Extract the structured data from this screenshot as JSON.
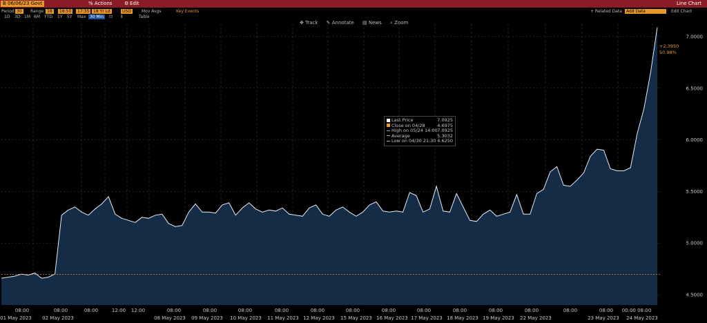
{
  "header": {
    "ticker": "B 06/06/23 Govt",
    "actions_label": "% Actions",
    "edit_label": "Edit",
    "chart_label": "Line Chart"
  },
  "settings": {
    "period_label": "Period",
    "period_value": "30",
    "range_label": "Range",
    "range_from": "18",
    "range_from_time": "18:50",
    "range_to": "17:35",
    "range_to_time": "18 Yr Ld",
    "currency": "USD",
    "mov_avgs_label": "Mov Avgs",
    "key_events_label": "Key Events",
    "related_data_label": "+ Related Data",
    "add_data_label": "Add Data",
    "edit_chart_label": "Edit Chart"
  },
  "range_buttons": [
    "1D",
    "3D",
    "1M",
    "6M",
    "YTD",
    "1Y",
    "5Y",
    "Max"
  ],
  "interval_value": "30 Min",
  "table_label": "Table",
  "toolbar": {
    "track": "Track",
    "annotate": "Annotate",
    "news": "News",
    "zoom": "Zoom"
  },
  "tooltip": {
    "rows": [
      {
        "label": "Last Price",
        "value": "7.0925"
      },
      {
        "label": "Close on 04/28",
        "value": "4.6975"
      },
      {
        "label": "High on 05/24 14:00",
        "value": "7.0925"
      },
      {
        "label": "Average",
        "value": "5.3032"
      },
      {
        "label": "Low on 04/30 21:30",
        "value": "4.6250"
      }
    ]
  },
  "end_labels": {
    "change": "+2.3950",
    "pct": "50.98%"
  },
  "colors": {
    "line": "#e6eef8",
    "fill": "#142c45",
    "close_line": "#e9962b",
    "title_bar": "#8b1b24",
    "accent": "#e9962b"
  },
  "chart_data": {
    "type": "area",
    "title": "",
    "xlabel": "",
    "ylabel": "",
    "ylim": [
      4.4,
      7.1
    ],
    "yticks": [
      "4.5000",
      "5.0000",
      "5.5000",
      "6.0000",
      "6.5000",
      "7.0000"
    ],
    "ytick_values": [
      4.5,
      5.0,
      5.5,
      6.0,
      6.5,
      7.0
    ],
    "close_line_value": 4.6975,
    "x_time_labels": [
      "08:00",
      "08:00",
      "08:00",
      "12:00",
      "12:00",
      "08:00",
      "08:00",
      "08:00",
      "08:00",
      "08:00",
      "08:00",
      "08:00",
      "08:00",
      "08:00",
      "08:00",
      "08:00",
      "08:00",
      "08:00",
      "00:00 08:00"
    ],
    "x_date_labels": [
      "01 May 2023",
      "02 May 2023",
      "08 May 2023",
      "09 May 2023",
      "10 May 2023",
      "11 May 2023",
      "12 May 2023",
      "15 May 2023",
      "16 May 2023",
      "17 May 2023",
      "18 May 2023",
      "19 May 2023",
      "22 May 2023",
      "23 May 2023",
      "24 May 2023"
    ],
    "series": [
      {
        "values": [
          4.66,
          4.67,
          4.68,
          4.7,
          4.69,
          4.71,
          4.66,
          4.67,
          4.7,
          5.27,
          5.32,
          5.35,
          5.3,
          5.27,
          5.33,
          5.38,
          5.45,
          5.28,
          5.24,
          5.22,
          5.2,
          5.25,
          5.24,
          5.27,
          5.28,
          5.19,
          5.16,
          5.17,
          5.3,
          5.38,
          5.3,
          5.3,
          5.29,
          5.37,
          5.39,
          5.27,
          5.34,
          5.39,
          5.33,
          5.3,
          5.32,
          5.31,
          5.34,
          5.28,
          5.27,
          5.26,
          5.34,
          5.37,
          5.28,
          5.26,
          5.32,
          5.35,
          5.3,
          5.26,
          5.3,
          5.37,
          5.4,
          5.31,
          5.3,
          5.31,
          5.3,
          5.49,
          5.46,
          5.3,
          5.33,
          5.55,
          5.31,
          5.3,
          5.48,
          5.35,
          5.22,
          5.21,
          5.28,
          5.32,
          5.26,
          5.28,
          5.3,
          5.47,
          5.28,
          5.28,
          5.48,
          5.52,
          5.69,
          5.74,
          5.56,
          5.55,
          5.61,
          5.68,
          5.84,
          5.91,
          5.9,
          5.72,
          5.7,
          5.7,
          5.73,
          6.06,
          6.3,
          6.65,
          7.09
        ]
      }
    ]
  }
}
